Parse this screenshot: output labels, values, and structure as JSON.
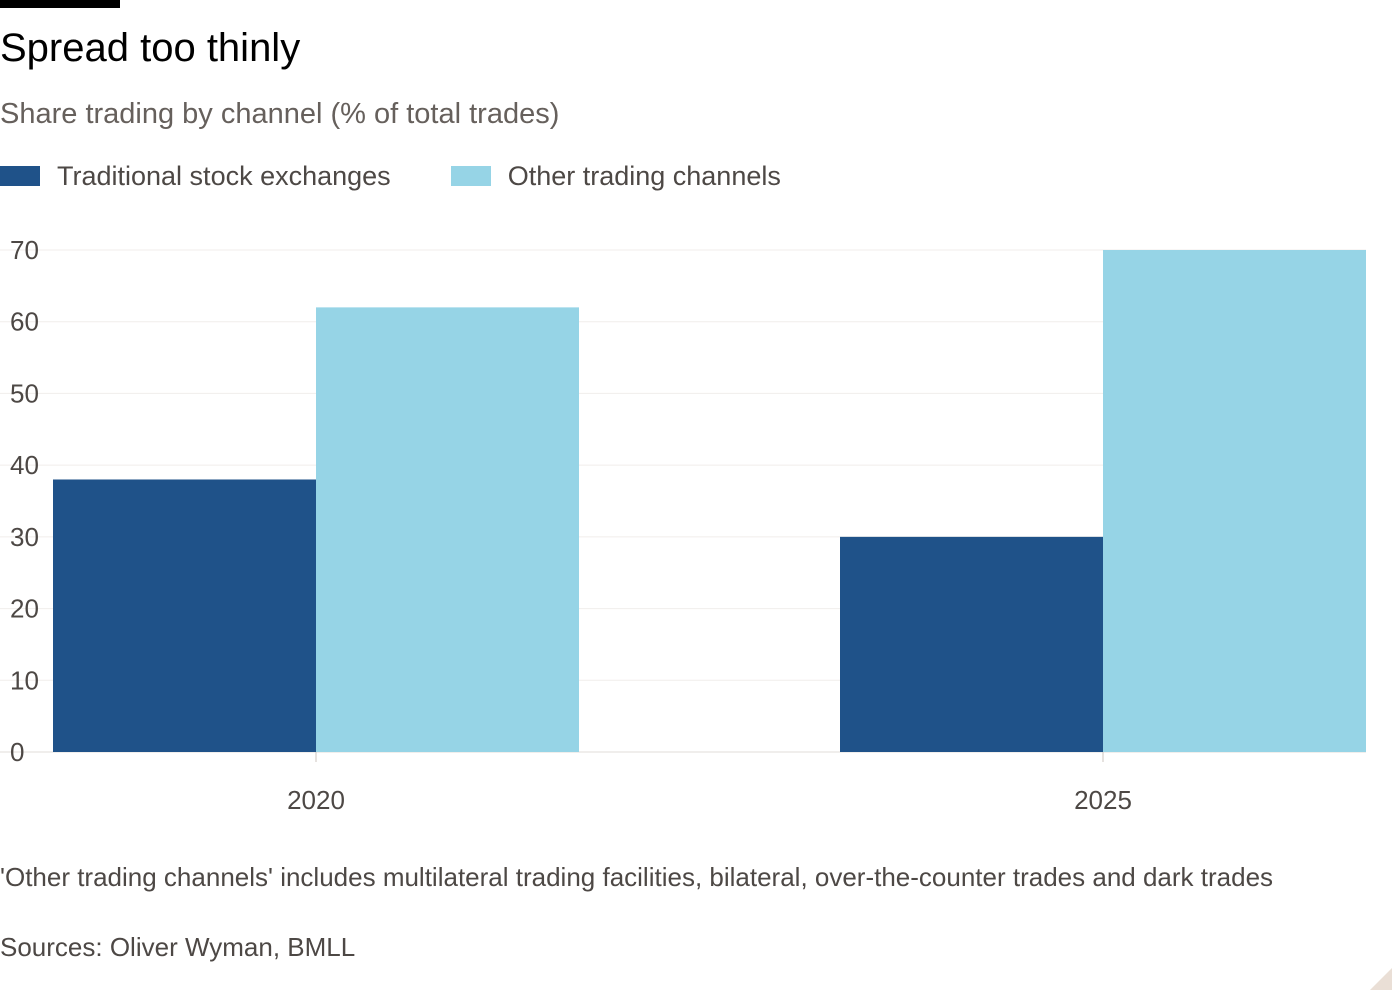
{
  "title": "Spread too thinly",
  "subtitle": "Share trading by channel (% of total trades)",
  "footnote": "'Other trading channels' includes multilateral trading facilities, bilateral, over-the-counter trades and dark trades",
  "source": "Sources: Oliver Wyman, BMLL",
  "legend": [
    {
      "label": "Traditional stock exchanges",
      "color": "#1f5289"
    },
    {
      "label": "Other trading channels",
      "color": "#96d4e6"
    }
  ],
  "chart_data": {
    "type": "bar",
    "categories": [
      "2020",
      "2025"
    ],
    "series": [
      {
        "name": "Traditional stock exchanges",
        "color": "#1f5289",
        "values": [
          38,
          30
        ]
      },
      {
        "name": "Other trading channels",
        "color": "#96d4e6",
        "values": [
          62,
          70
        ]
      }
    ],
    "ylim": [
      0,
      70
    ],
    "yticks": [
      0,
      10,
      20,
      30,
      40,
      50,
      60,
      70
    ],
    "grid": true,
    "legend_position": "top-left"
  }
}
